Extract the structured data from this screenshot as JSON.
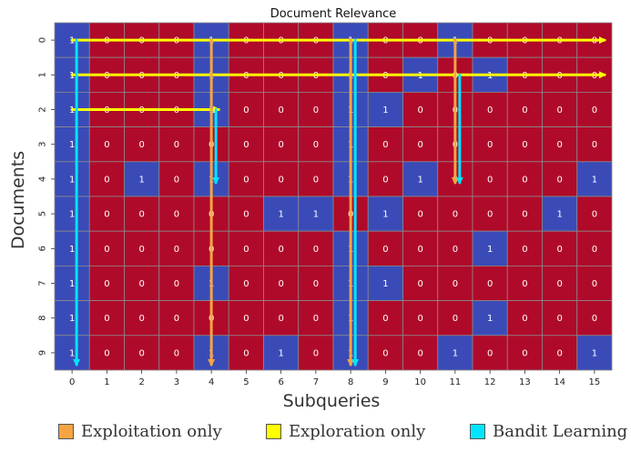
{
  "chart_data": {
    "type": "heatmap",
    "title": "Document Relevance",
    "xlabel": "Subqueries",
    "ylabel": "Documents",
    "x_ticks": [
      "0",
      "1",
      "2",
      "3",
      "4",
      "5",
      "6",
      "7",
      "8",
      "9",
      "10",
      "11",
      "12",
      "13",
      "14",
      "15"
    ],
    "y_ticks": [
      "0",
      "1",
      "2",
      "3",
      "4",
      "5",
      "6",
      "7",
      "8",
      "9"
    ],
    "colors": {
      "zero": "#b00a2a",
      "one": "#3a4bb8",
      "grid": "#8a8a8a"
    },
    "matrix": [
      [
        1,
        0,
        0,
        0,
        1,
        0,
        0,
        0,
        1,
        0,
        0,
        1,
        0,
        0,
        0,
        0
      ],
      [
        1,
        0,
        0,
        0,
        1,
        0,
        0,
        0,
        1,
        0,
        1,
        0,
        1,
        0,
        0,
        0
      ],
      [
        1,
        0,
        0,
        0,
        1,
        0,
        0,
        0,
        1,
        1,
        0,
        0,
        0,
        0,
        0,
        0
      ],
      [
        1,
        0,
        0,
        0,
        0,
        0,
        0,
        0,
        1,
        0,
        0,
        0,
        0,
        0,
        0,
        0
      ],
      [
        1,
        0,
        1,
        0,
        1,
        0,
        0,
        0,
        1,
        0,
        1,
        0,
        0,
        0,
        0,
        1
      ],
      [
        1,
        0,
        0,
        0,
        0,
        0,
        1,
        1,
        0,
        1,
        0,
        0,
        0,
        0,
        1,
        0
      ],
      [
        1,
        0,
        0,
        0,
        0,
        0,
        0,
        0,
        1,
        0,
        0,
        0,
        1,
        0,
        0,
        0
      ],
      [
        1,
        0,
        0,
        0,
        1,
        0,
        0,
        0,
        1,
        1,
        0,
        0,
        0,
        0,
        0,
        0
      ],
      [
        1,
        0,
        0,
        0,
        0,
        0,
        0,
        0,
        1,
        0,
        0,
        0,
        1,
        0,
        0,
        0
      ],
      [
        1,
        0,
        0,
        0,
        1,
        0,
        1,
        0,
        1,
        0,
        0,
        1,
        0,
        0,
        0,
        1
      ]
    ],
    "paths": [
      {
        "strategy": "Exploration only",
        "color": "#ffff00",
        "from": [
          0,
          0
        ],
        "to": [
          15,
          0
        ]
      },
      {
        "strategy": "Exploration only",
        "color": "#ffff00",
        "from": [
          0,
          1
        ],
        "to": [
          15,
          1
        ]
      },
      {
        "strategy": "Exploration only",
        "color": "#ffff00",
        "from": [
          0,
          2
        ],
        "to": [
          4,
          2
        ]
      },
      {
        "strategy": "Exploitation only",
        "color": "#f5a442",
        "from": [
          4,
          0
        ],
        "to": [
          4,
          9
        ]
      },
      {
        "strategy": "Exploitation only",
        "color": "#f5a442",
        "from": [
          8,
          0
        ],
        "to": [
          8,
          9
        ]
      },
      {
        "strategy": "Exploitation only",
        "color": "#f5a442",
        "from": [
          11,
          0
        ],
        "to": [
          11,
          4
        ]
      },
      {
        "strategy": "Bandit Learning",
        "color": "#00e5ff",
        "from": [
          0,
          0
        ],
        "to": [
          0,
          9
        ]
      },
      {
        "strategy": "Bandit Learning",
        "color": "#00e5ff",
        "from": [
          4,
          2
        ],
        "to": [
          4,
          4
        ]
      },
      {
        "strategy": "Bandit Learning",
        "color": "#00e5ff",
        "from": [
          8,
          0
        ],
        "to": [
          8,
          9
        ]
      },
      {
        "strategy": "Bandit Learning",
        "color": "#00e5ff",
        "from": [
          11,
          1
        ],
        "to": [
          11,
          4
        ]
      }
    ]
  },
  "legend": {
    "items": [
      {
        "label": "Exploitation only",
        "color": "#f5a442"
      },
      {
        "label": "Exploration only",
        "color": "#ffff00"
      },
      {
        "label": "Bandit Learning",
        "color": "#00e5ff"
      }
    ]
  }
}
